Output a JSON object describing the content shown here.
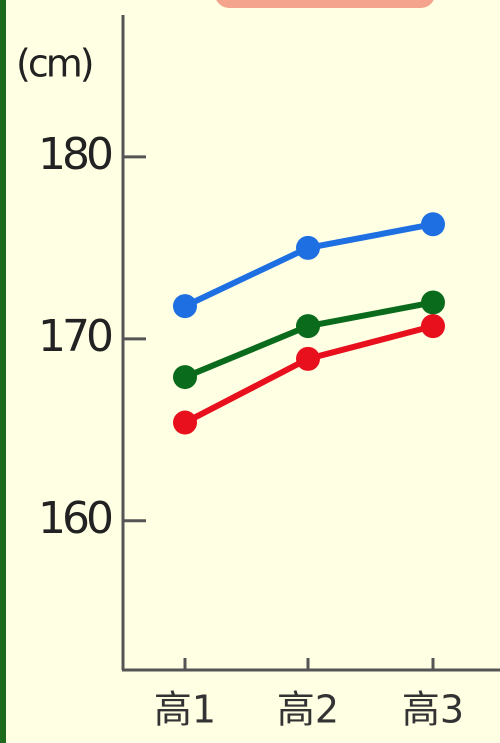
{
  "chart_data": {
    "type": "line",
    "y_label": "(cm)",
    "categories": [
      "高1",
      "高2",
      "高3"
    ],
    "series": [
      {
        "color": "#1e6fe2",
        "values": [
          171.8,
          175.0,
          176.3
        ]
      },
      {
        "color": "#0b6b1c",
        "values": [
          167.9,
          170.7,
          172.0
        ]
      },
      {
        "color": "#e8101c",
        "values": [
          165.4,
          168.9,
          170.7
        ]
      }
    ],
    "ylim": [
      151.8,
      187.8
    ],
    "yticks": [
      160,
      170,
      180
    ],
    "grid": false
  }
}
